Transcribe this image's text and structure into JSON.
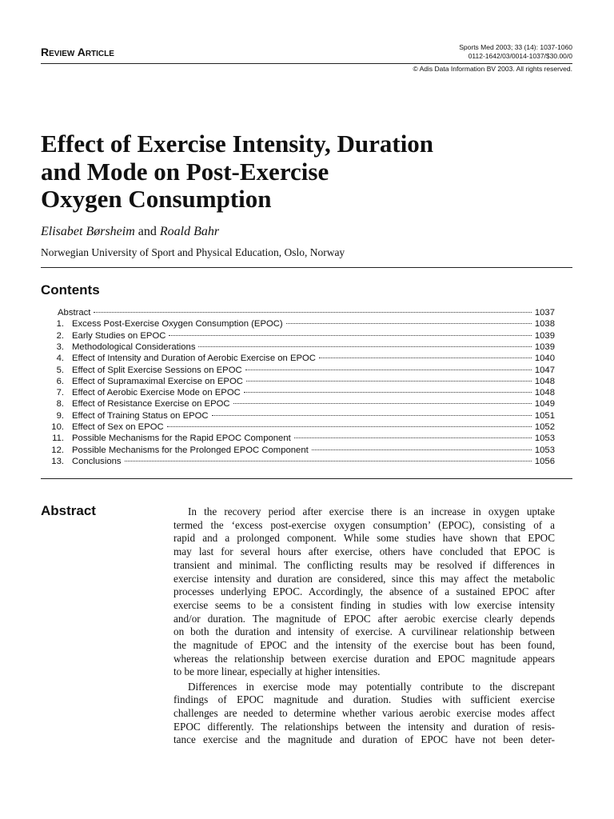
{
  "header": {
    "section": "Review Article",
    "citation": "Sports Med 2003; 33 (14): 1037-1060",
    "code": "0112-1642/03/0014-1037/$30.00/0",
    "copyright": "© Adis Data Information BV 2003. All rights reserved."
  },
  "article": {
    "title_lines": [
      "Effect of Exercise Intensity, Duration",
      "and Mode on Post-Exercise",
      "Oxygen Consumption"
    ],
    "authors": [
      "Elisabet Børsheim",
      "and",
      "Roald Bahr"
    ],
    "affiliation": "Norwegian University of Sport and Physical Education, Oslo, Norway"
  },
  "contents": {
    "heading": "Contents",
    "entries": [
      {
        "number": "",
        "title": "Abstract",
        "page": "1037"
      },
      {
        "number": "1.",
        "title": "Excess Post-Exercise Oxygen Consumption (EPOC)",
        "page": "1038"
      },
      {
        "number": "2.",
        "title": "Early Studies on EPOC",
        "page": "1039"
      },
      {
        "number": "3.",
        "title": "Methodological Considerations",
        "page": "1039"
      },
      {
        "number": "4.",
        "title": "Effect of Intensity and Duration of Aerobic Exercise on EPOC",
        "page": "1040"
      },
      {
        "number": "5.",
        "title": "Effect of Split Exercise Sessions on EPOC",
        "page": "1047"
      },
      {
        "number": "6.",
        "title": "Effect of Supramaximal Exercise on EPOC",
        "page": "1048"
      },
      {
        "number": "7.",
        "title": "Effect of Aerobic Exercise Mode on EPOC",
        "page": "1048"
      },
      {
        "number": "8.",
        "title": "Effect of Resistance Exercise on EPOC",
        "page": "1049"
      },
      {
        "number": "9.",
        "title": "Effect of Training Status on EPOC",
        "page": "1051"
      },
      {
        "number": "10.",
        "title": "Effect of Sex on EPOC",
        "page": "1052"
      },
      {
        "number": "11.",
        "title": "Possible Mechanisms for the Rapid EPOC Component",
        "page": "1053"
      },
      {
        "number": "12.",
        "title": "Possible Mechanisms for the Prolonged EPOC Component",
        "page": "1053"
      },
      {
        "number": "13.",
        "title": "Conclusions",
        "page": "1056"
      }
    ]
  },
  "abstract": {
    "heading": "Abstract",
    "paragraphs": [
      [
        "In the recovery period after exercise there is an increase in oxygen uptake",
        "termed the ‘excess post-exercise oxygen consumption’ (EPOC), consisting of a",
        "rapid and a prolonged component. While some studies have shown that EPOC",
        "may last for several hours after exercise, others have concluded that EPOC is",
        "transient and minimal. The conflicting results may be resolved if differences in",
        "exercise intensity and duration are considered, since this may affect the metabolic",
        "processes underlying EPOC. Accordingly, the absence of a sustained EPOC after",
        "exercise seems to be a consistent finding in studies with low exercise intensity",
        "and/or duration. The magnitude of EPOC after aerobic exercise clearly depends",
        "on both the duration and intensity of exercise. A curvilinear relationship between",
        "the magnitude of EPOC and the intensity of the exercise bout has been found,",
        "whereas the relationship between exercise duration and EPOC magnitude appears",
        "to be more linear, especially at higher intensities."
      ],
      [
        "Differences in exercise mode may potentially contribute to the discrepant",
        "findings of EPOC magnitude and duration. Studies with sufficient exercise",
        "challenges are needed to determine whether various aerobic exercise modes affect",
        "EPOC differently. The relationships between the intensity and duration of resis-",
        "tance exercise and the magnitude and duration of EPOC have not been deter-"
      ]
    ]
  }
}
